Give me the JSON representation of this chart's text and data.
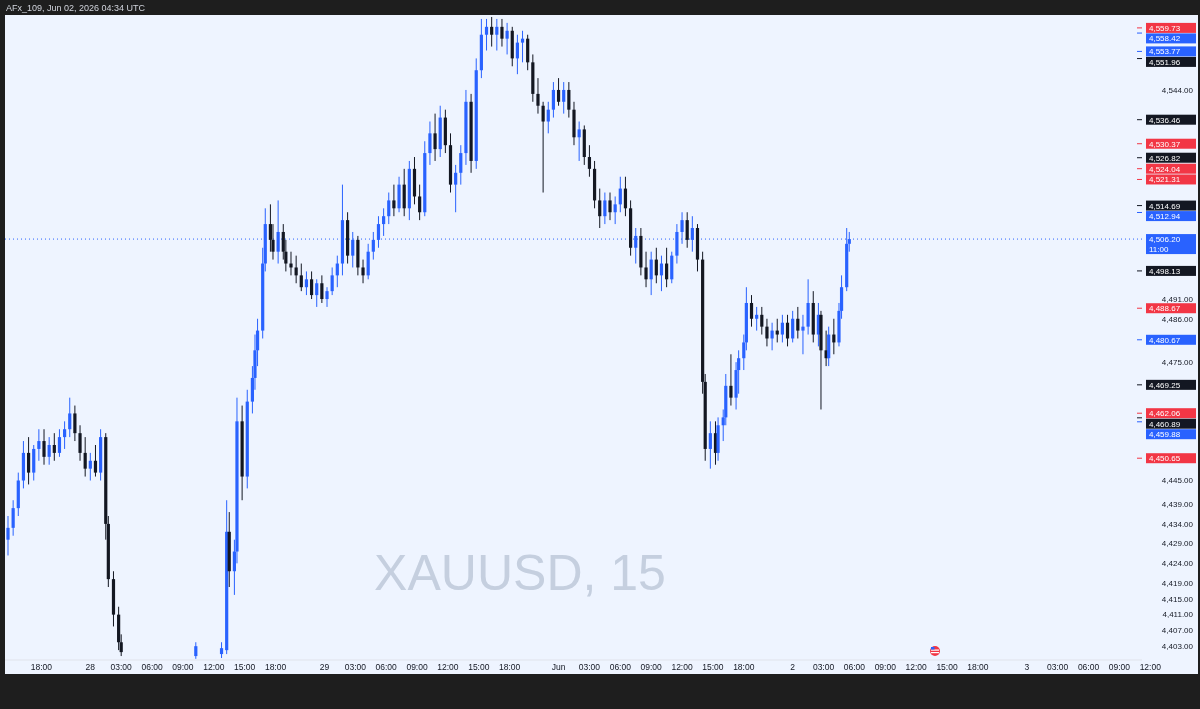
{
  "chart_data": {
    "type": "candlestick",
    "title": "XAUUSD, 15",
    "annotations": [
      "AFx_109, Jun 02, 2026 04:34 UTC"
    ],
    "ylim": [
      4399.5,
      4563
    ],
    "yticks": [
      {
        "value": 4544,
        "label": "4,544.00"
      },
      {
        "value": 4491,
        "label": "4,491.00"
      },
      {
        "value": 4486,
        "label": "4,486.00"
      },
      {
        "value": 4475,
        "label": "4,475.00"
      },
      {
        "value": 4445,
        "label": "4,445.00"
      },
      {
        "value": 4439,
        "label": "4,439.00"
      },
      {
        "value": 4434,
        "label": "4,434.00"
      },
      {
        "value": 4429,
        "label": "4,429.00"
      },
      {
        "value": 4424,
        "label": "4,424.00"
      },
      {
        "value": 4419,
        "label": "4,419.00"
      },
      {
        "value": 4415,
        "label": "4,415.00"
      },
      {
        "value": 4411,
        "label": "4,411.00"
      },
      {
        "value": 4407,
        "label": "4,407.00"
      },
      {
        "value": 4403,
        "label": "4,403.00"
      }
    ],
    "ref_lines": [
      {
        "axis": "y",
        "value": 4559.73,
        "label": "4,559.73",
        "color": "#f23645"
      },
      {
        "axis": "y",
        "value": 4558.42,
        "label": "4,558.42",
        "color": "#2962ff"
      },
      {
        "axis": "y",
        "value": 4553.77,
        "label": "4,553.77",
        "color": "#2962ff"
      },
      {
        "axis": "y",
        "value": 4551.96,
        "label": "4,551.96",
        "color": "#131722"
      },
      {
        "axis": "y",
        "value": 4536.46,
        "label": "4,536.46",
        "color": "#131722"
      },
      {
        "axis": "y",
        "value": 4530.37,
        "label": "4,530.37",
        "color": "#f23645"
      },
      {
        "axis": "y",
        "value": 4526.82,
        "label": "4,526.82",
        "color": "#131722"
      },
      {
        "axis": "y",
        "value": 4524.04,
        "label": "4,524.04",
        "color": "#f23645"
      },
      {
        "axis": "y",
        "value": 4521.31,
        "label": "4,521.31",
        "color": "#f23645"
      },
      {
        "axis": "y",
        "value": 4514.69,
        "label": "4,514.69",
        "color": "#131722"
      },
      {
        "axis": "y",
        "value": 4512.94,
        "label": "4,512.94",
        "color": "#2962ff"
      },
      {
        "axis": "y",
        "value": 4506.2,
        "label": "4,506.20\n11:00",
        "color": "#2962ff",
        "line_style": "dotted"
      },
      {
        "axis": "y",
        "value": 4498.13,
        "label": "4,498.13",
        "color": "#131722"
      },
      {
        "axis": "y",
        "value": 4488.67,
        "label": "4,488.67",
        "color": "#f23645"
      },
      {
        "axis": "y",
        "value": 4480.67,
        "label": "4,480.67",
        "color": "#2962ff"
      },
      {
        "axis": "y",
        "value": 4469.25,
        "label": "4,469.25",
        "color": "#131722"
      },
      {
        "axis": "y",
        "value": 4462.06,
        "label": "4,462.06",
        "color": "#f23645"
      },
      {
        "axis": "y",
        "value": 4460.89,
        "label": "4,460.89",
        "color": "#131722"
      },
      {
        "axis": "y",
        "value": 4459.88,
        "label": "4,459.88",
        "color": "#2962ff"
      },
      {
        "axis": "y",
        "value": 4450.65,
        "label": "4,450.65",
        "color": "#f23645"
      }
    ],
    "categories": [
      null,
      null,
      null,
      null,
      null,
      null,
      null,
      null,
      null,
      null,
      null,
      null,
      null,
      "18:00",
      null,
      null,
      null,
      null,
      null,
      null,
      null,
      null,
      null,
      null,
      null,
      null,
      null,
      null,
      null,
      null,
      null,
      null,
      "28",
      null,
      null,
      null,
      null,
      null,
      null,
      null,
      null,
      null,
      null,
      null,
      "03:00",
      null,
      null,
      null,
      null,
      null,
      null,
      null,
      null,
      null,
      null,
      null,
      "06:00",
      null,
      null,
      null,
      null,
      null,
      null,
      null,
      null,
      null,
      null,
      null,
      "09:00",
      null,
      null,
      null,
      null,
      null,
      null,
      null,
      null,
      null,
      null,
      null,
      "12:00",
      null,
      null,
      null,
      null,
      null,
      null,
      null,
      null,
      null,
      null,
      null,
      "15:00",
      null,
      null,
      null,
      null,
      null,
      null,
      null,
      null,
      null,
      null,
      null,
      "18:00",
      null,
      null,
      null,
      null,
      null,
      null,
      null,
      null,
      null,
      null,
      null,
      null,
      null,
      null,
      null,
      null,
      null,
      null,
      "29",
      null,
      null,
      null,
      null,
      null,
      null,
      null,
      null,
      null,
      null,
      null,
      "03:00",
      null,
      null,
      null,
      null,
      null,
      null,
      null,
      null,
      null,
      null,
      null,
      "06:00",
      null,
      null,
      null,
      null,
      null,
      null,
      null,
      null,
      null,
      null,
      null,
      "09:00",
      null,
      null,
      null,
      null,
      null,
      null,
      null,
      null,
      null,
      null,
      null,
      "12:00",
      null,
      null,
      null,
      null,
      null,
      null,
      null,
      null,
      null,
      null,
      null,
      "15:00",
      null,
      null,
      null,
      null,
      null,
      null,
      null,
      null,
      null,
      null,
      null,
      "18:00",
      null,
      null,
      null,
      null,
      null,
      null,
      null,
      null,
      null,
      null,
      null,
      null,
      null,
      null,
      null,
      null,
      null,
      null,
      "Jun",
      null,
      null,
      null,
      null,
      null,
      null,
      null,
      null,
      null,
      null,
      null,
      "03:00",
      null,
      null,
      null,
      null,
      null,
      null,
      null,
      null,
      null,
      null,
      null,
      "06:00",
      null,
      null,
      null,
      null,
      null,
      null,
      null,
      null,
      null,
      null,
      null,
      "09:00",
      null,
      null,
      null,
      null,
      null,
      null,
      null,
      null,
      null,
      null,
      null,
      "12:00",
      null,
      null,
      null,
      null,
      null,
      null,
      null,
      null,
      null,
      null,
      null,
      "15:00",
      null,
      null,
      null,
      null,
      null,
      null,
      null,
      null,
      null,
      null,
      null,
      "18:00",
      null,
      null,
      null,
      null,
      null,
      null,
      null,
      null,
      null,
      null,
      null,
      null,
      null,
      null,
      null,
      null,
      null,
      null,
      "2",
      null,
      null,
      null,
      null,
      null,
      null,
      null,
      null,
      null,
      null,
      null,
      "03:00",
      null,
      null,
      null,
      null,
      null,
      null,
      null,
      null,
      null,
      null,
      null,
      "06:00",
      null,
      null,
      null,
      null,
      null,
      null,
      null,
      null,
      null,
      null,
      null,
      "09:00",
      null,
      null,
      null,
      null,
      null,
      null,
      null,
      null,
      null,
      null,
      null,
      "12:00",
      null,
      null,
      null,
      null,
      null,
      null,
      null,
      null,
      null,
      null,
      null,
      "15:00",
      null,
      null,
      null,
      null,
      null,
      null,
      null,
      null,
      null,
      null,
      null,
      "18:00",
      null,
      null,
      null,
      null,
      null,
      null,
      null,
      null,
      null,
      null,
      null,
      null,
      null,
      null,
      null,
      null,
      null,
      null,
      "3",
      null,
      null,
      null,
      null,
      null,
      null,
      null,
      null,
      null,
      null,
      null,
      "03:00",
      null,
      null,
      null,
      null,
      null,
      null,
      null,
      null,
      null,
      null,
      null,
      "06:00",
      null,
      null,
      null,
      null,
      null,
      null,
      null,
      null,
      null,
      null,
      null,
      "09:00",
      null,
      null,
      null,
      null,
      null,
      null,
      null,
      null,
      null,
      null,
      null,
      "12:00",
      null,
      null,
      null
    ],
    "ohlc": [
      [
        4430,
        4436,
        4426,
        4433
      ],
      null,
      [
        4433,
        4440,
        4431,
        4438
      ],
      null,
      [
        4438,
        4447,
        4436,
        4445
      ],
      null,
      [
        4445,
        4455,
        4443,
        4452
      ],
      null,
      [
        4452,
        4456,
        4444,
        4447
      ],
      null,
      [
        4447,
        4454,
        4445,
        4453
      ],
      null,
      [
        4453,
        4458,
        4450,
        4455
      ],
      null,
      [
        4455,
        4458,
        4449,
        4451
      ],
      null,
      [
        4451,
        4456,
        4449,
        4454
      ],
      null,
      [
        4454,
        4457,
        4450,
        4452
      ],
      null,
      [
        4452,
        4458,
        4451,
        4456
      ],
      null,
      [
        4456,
        4460,
        4453,
        4458
      ],
      null,
      [
        4458,
        4466,
        4456,
        4462
      ],
      null,
      [
        4462,
        4464,
        4455,
        4457
      ],
      null,
      [
        4457,
        4459,
        4450,
        4452
      ],
      null,
      [
        4452,
        4456,
        4446,
        4448
      ],
      null,
      [
        4448,
        4452,
        4445,
        4450
      ],
      null,
      [
        4450,
        4454,
        4446,
        4447
      ],
      null,
      [
        4447,
        4458,
        4445,
        4456
      ],
      null,
      [
        4456,
        4457,
        4430,
        4434
      ],
      [
        4434,
        4436,
        4418,
        4420
      ],
      null,
      [
        4420,
        4422,
        4408,
        4411
      ],
      null,
      [
        4411,
        4413,
        4402,
        4404
      ],
      [
        4404,
        4406,
        4400.5,
        4401.5
      ],
      null,
      null,
      null,
      null,
      null,
      null,
      null,
      null,
      null,
      null,
      null,
      null,
      null,
      null,
      null,
      null,
      null,
      null,
      null,
      null,
      null,
      null,
      null,
      null,
      null,
      null,
      null,
      null,
      [
        4400.5,
        4404,
        4399.8,
        4403
      ],
      null,
      null,
      null,
      null,
      null,
      null,
      null,
      null,
      null,
      [
        4401,
        4404,
        4400,
        4402.5
      ],
      null,
      [
        4402,
        4440,
        4401,
        4432
      ],
      [
        4432,
        4437,
        4418,
        4422
      ],
      null,
      [
        4422,
        4430,
        4416,
        4427
      ],
      [
        4427,
        4466,
        4424,
        4460
      ],
      null,
      [
        4460,
        4464,
        4440,
        4446
      ],
      null,
      [
        4446,
        4468,
        4443,
        4465
      ],
      null,
      [
        4465,
        4474,
        4462,
        4471
      ],
      [
        4471,
        4482,
        4468,
        4478
      ],
      [
        4478,
        4486,
        4474,
        4483
      ],
      null,
      [
        4483,
        4504,
        4481,
        4500
      ],
      [
        4500,
        4514,
        4498,
        4510
      ],
      null,
      [
        4510,
        4515,
        4503,
        4506
      ],
      [
        4506,
        4510,
        4501,
        4503
      ],
      null,
      [
        4503,
        4516,
        4500,
        4508
      ],
      null,
      [
        4508,
        4510,
        4501,
        4503
      ],
      [
        4503,
        4506,
        4498,
        4500
      ],
      null,
      [
        4500,
        4503,
        4497,
        4499
      ],
      null,
      [
        4499,
        4502,
        4495,
        4497
      ],
      null,
      [
        4497,
        4500,
        4493,
        4494
      ],
      null,
      [
        4494,
        4498,
        4492,
        4496
      ],
      null,
      [
        4496,
        4498,
        4491,
        4492
      ],
      null,
      [
        4492,
        4496,
        4489,
        4495
      ],
      null,
      [
        4495,
        4497,
        4490,
        4491
      ],
      null,
      [
        4491,
        4494,
        4489,
        4493
      ],
      null,
      [
        4493,
        4499,
        4492,
        4497
      ],
      null,
      [
        4497,
        4502,
        4494,
        4500
      ],
      null,
      [
        4500,
        4520,
        4497,
        4511
      ],
      null,
      [
        4511,
        4513,
        4500,
        4502
      ],
      null,
      [
        4502,
        4508,
        4499,
        4506
      ],
      null,
      [
        4506,
        4507,
        4497,
        4499
      ],
      null,
      [
        4499,
        4501,
        4495,
        4497
      ],
      null,
      [
        4497,
        4505,
        4496,
        4503
      ],
      null,
      [
        4503,
        4508,
        4501,
        4506
      ],
      null,
      [
        4506,
        4512,
        4504,
        4510
      ],
      null,
      [
        4510,
        4514,
        4507,
        4512
      ],
      null,
      [
        4512,
        4518,
        4510,
        4516
      ],
      null,
      [
        4516,
        4520,
        4512,
        4514
      ],
      null,
      [
        4514,
        4522,
        4513,
        4520
      ],
      null,
      [
        4520,
        4524,
        4512,
        4514
      ],
      null,
      [
        4514,
        4526,
        4511,
        4524
      ],
      null,
      [
        4524,
        4527,
        4515,
        4517
      ],
      null,
      [
        4517,
        4520,
        4511,
        4513
      ],
      null,
      [
        4513,
        4531,
        4512,
        4528
      ],
      null,
      [
        4528,
        4536,
        4525,
        4533
      ],
      null,
      [
        4533,
        4538,
        4526,
        4529
      ],
      null,
      [
        4529,
        4540,
        4527,
        4537
      ],
      null,
      [
        4537,
        4539,
        4528,
        4530
      ],
      null,
      [
        4530,
        4533,
        4518,
        4520
      ],
      null,
      [
        4520,
        4525,
        4513,
        4523
      ],
      null,
      [
        4523,
        4530,
        4520,
        4528
      ],
      null,
      [
        4528,
        4544,
        4525,
        4541
      ],
      null,
      [
        4541,
        4543,
        4523,
        4526
      ],
      null,
      [
        4526,
        4552,
        4524,
        4549
      ],
      null,
      [
        4549,
        4562,
        4547,
        4558
      ],
      null,
      [
        4558,
        4562,
        4554,
        4560
      ],
      null,
      [
        4560,
        4562.5,
        4555,
        4558
      ],
      null,
      [
        4558,
        4562,
        4554,
        4560
      ],
      null,
      [
        4560,
        4562,
        4555,
        4557
      ],
      null,
      [
        4557,
        4561,
        4553,
        4559
      ],
      null,
      [
        4559,
        4560,
        4550,
        4552
      ],
      null,
      [
        4552,
        4558,
        4548,
        4556
      ],
      null,
      [
        4556,
        4559,
        4551,
        4557
      ],
      null,
      [
        4557,
        4558,
        4549,
        4551
      ],
      null,
      [
        4551,
        4553,
        4541,
        4543
      ],
      null,
      [
        4543,
        4547,
        4538,
        4540
      ],
      null,
      [
        4540,
        4541,
        4518,
        4536
      ],
      null,
      [
        4536,
        4541,
        4533,
        4539
      ],
      null,
      [
        4539,
        4546,
        4537,
        4544
      ],
      null,
      [
        4544,
        4547,
        4540,
        4541
      ],
      null,
      [
        4541,
        4546,
        4538,
        4544
      ],
      null,
      [
        4544,
        4546,
        4537,
        4539
      ],
      null,
      [
        4539,
        4541,
        4530,
        4532
      ],
      null,
      [
        4532,
        4536,
        4526,
        4534
      ],
      null,
      [
        4534,
        4535,
        4525,
        4527
      ],
      null,
      [
        4527,
        4530,
        4522,
        4524
      ],
      null,
      [
        4524,
        4526,
        4514,
        4516
      ],
      null,
      [
        4516,
        4519,
        4509,
        4512
      ],
      null,
      [
        4512,
        4518,
        4510,
        4516
      ],
      null,
      [
        4516,
        4518,
        4511,
        4513
      ],
      null,
      [
        4513,
        4517,
        4510,
        4515
      ],
      null,
      [
        4515,
        4522,
        4513,
        4519
      ],
      null,
      [
        4519,
        4522,
        4512,
        4514
      ],
      null,
      [
        4514,
        4516,
        4502,
        4504
      ],
      null,
      [
        4504,
        4509,
        4500,
        4507
      ],
      null,
      [
        4507,
        4509,
        4497,
        4499
      ],
      null,
      [
        4499,
        4503,
        4494,
        4496
      ],
      null,
      [
        4496,
        4503,
        4492,
        4501
      ],
      null,
      [
        4501,
        4504,
        4495,
        4497
      ],
      null,
      [
        4497,
        4502,
        4493,
        4500
      ],
      null,
      [
        4500,
        4504,
        4494,
        4496
      ],
      null,
      [
        4496,
        4503,
        4495,
        4502
      ],
      null,
      [
        4502,
        4510,
        4500,
        4508
      ],
      null,
      [
        4508,
        4513,
        4505,
        4511
      ],
      null,
      [
        4511,
        4513,
        4504,
        4506
      ],
      null,
      [
        4506,
        4512,
        4503,
        4509
      ],
      null,
      [
        4509,
        4510,
        4498,
        4501
      ],
      null,
      [
        4501,
        4503,
        4467,
        4470
      ],
      [
        4470,
        4472,
        4450,
        4453
      ],
      null,
      [
        4453,
        4460,
        4448,
        4457
      ],
      null,
      [
        4457,
        4460,
        4449,
        4452
      ],
      [
        4452,
        4461,
        4450,
        4459
      ],
      null,
      [
        4459,
        4463,
        4455,
        4461
      ],
      [
        4461,
        4472,
        4459,
        4469
      ],
      null,
      [
        4469,
        4477,
        4464,
        4466
      ],
      null,
      [
        4466,
        4475,
        4463,
        4473
      ],
      [
        4473,
        4478,
        4467,
        4476
      ],
      null,
      [
        4476,
        4482,
        4473,
        4480
      ],
      [
        4480,
        4494,
        4478,
        4490
      ],
      null,
      [
        4490,
        4492,
        4484,
        4486
      ],
      null,
      [
        4486,
        4489,
        4483,
        4487
      ],
      null,
      [
        4487,
        4489,
        4482,
        4484
      ],
      null,
      [
        4484,
        4486,
        4479,
        4481
      ],
      null,
      [
        4481,
        4485,
        4478,
        4483
      ],
      null,
      [
        4483,
        4486,
        4480,
        4482
      ],
      null,
      [
        4482,
        4487,
        4480,
        4485
      ],
      null,
      [
        4485,
        4487,
        4479,
        4481
      ],
      null,
      [
        4481,
        4488,
        4480,
        4486
      ],
      null,
      [
        4486,
        4489,
        4481,
        4483
      ],
      null,
      [
        4483,
        4487,
        4477,
        4484
      ],
      null,
      [
        4484,
        4496,
        4482,
        4490
      ],
      null,
      [
        4490,
        4493,
        4480,
        4482
      ],
      null,
      [
        4482,
        4490,
        4479,
        4487
      ],
      [
        4487,
        4488,
        4463,
        4478
      ],
      null,
      [
        4478,
        4483,
        4474,
        4476
      ],
      [
        4476,
        4484,
        4474,
        4482
      ],
      null,
      [
        4482,
        4486,
        4477,
        4480
      ],
      null,
      [
        4480,
        4490,
        4479,
        4488
      ],
      [
        4488,
        4497,
        4486,
        4494
      ],
      null,
      [
        4494,
        4509,
        4493,
        4505
      ],
      [
        4505,
        4508,
        4503,
        4506.2
      ],
      null,
      null,
      null,
      null,
      null,
      null,
      null,
      null,
      null,
      null,
      null,
      null,
      null,
      null,
      null,
      null,
      null,
      null,
      null,
      null,
      null,
      null,
      null,
      null,
      null,
      null,
      null,
      null,
      null,
      null,
      null,
      null,
      null,
      null,
      null,
      null,
      null,
      null,
      null,
      null,
      null,
      null,
      null,
      null,
      null,
      null,
      null,
      null,
      null,
      null,
      null,
      null,
      null,
      null,
      null,
      null,
      null,
      null,
      null,
      null,
      null,
      null,
      null,
      null,
      null,
      null,
      null,
      null,
      null,
      null,
      null,
      null,
      null,
      null,
      null,
      null,
      null,
      null,
      null,
      null,
      null,
      null,
      null,
      null,
      null,
      null,
      null,
      null,
      null,
      null,
      null,
      null,
      null,
      null,
      null,
      null,
      null,
      null,
      null,
      null,
      null,
      null,
      null,
      null,
      null,
      null,
      null,
      null,
      null,
      null,
      null,
      null,
      null,
      null,
      null,
      null,
      null,
      null,
      null,
      null
    ]
  }
}
